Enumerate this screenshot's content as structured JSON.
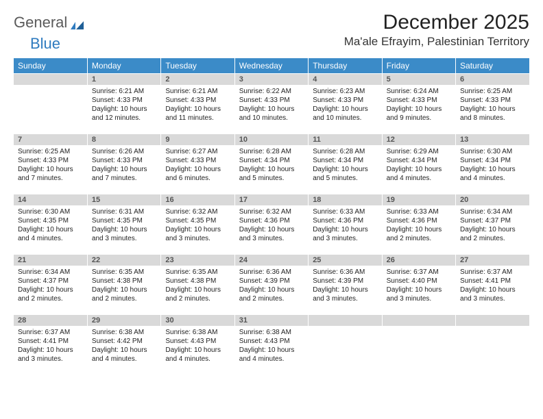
{
  "brand": {
    "word1": "General",
    "word2": "Blue"
  },
  "title": "December 2025",
  "location": "Ma'ale Efrayim, Palestinian Territory",
  "colors": {
    "header_bg": "#3b8bc8",
    "header_text": "#ffffff",
    "daynum_bg": "#d9d9d9",
    "daynum_text": "#555555",
    "body_text": "#222222",
    "brand_gray": "#5a5a5a",
    "brand_blue": "#2f7bbf"
  },
  "day_headers": [
    "Sunday",
    "Monday",
    "Tuesday",
    "Wednesday",
    "Thursday",
    "Friday",
    "Saturday"
  ],
  "weeks": [
    [
      null,
      {
        "n": "1",
        "sr": "Sunrise: 6:21 AM",
        "ss": "Sunset: 4:33 PM",
        "dl": "Daylight: 10 hours and 12 minutes."
      },
      {
        "n": "2",
        "sr": "Sunrise: 6:21 AM",
        "ss": "Sunset: 4:33 PM",
        "dl": "Daylight: 10 hours and 11 minutes."
      },
      {
        "n": "3",
        "sr": "Sunrise: 6:22 AM",
        "ss": "Sunset: 4:33 PM",
        "dl": "Daylight: 10 hours and 10 minutes."
      },
      {
        "n": "4",
        "sr": "Sunrise: 6:23 AM",
        "ss": "Sunset: 4:33 PM",
        "dl": "Daylight: 10 hours and 10 minutes."
      },
      {
        "n": "5",
        "sr": "Sunrise: 6:24 AM",
        "ss": "Sunset: 4:33 PM",
        "dl": "Daylight: 10 hours and 9 minutes."
      },
      {
        "n": "6",
        "sr": "Sunrise: 6:25 AM",
        "ss": "Sunset: 4:33 PM",
        "dl": "Daylight: 10 hours and 8 minutes."
      }
    ],
    [
      {
        "n": "7",
        "sr": "Sunrise: 6:25 AM",
        "ss": "Sunset: 4:33 PM",
        "dl": "Daylight: 10 hours and 7 minutes."
      },
      {
        "n": "8",
        "sr": "Sunrise: 6:26 AM",
        "ss": "Sunset: 4:33 PM",
        "dl": "Daylight: 10 hours and 7 minutes."
      },
      {
        "n": "9",
        "sr": "Sunrise: 6:27 AM",
        "ss": "Sunset: 4:33 PM",
        "dl": "Daylight: 10 hours and 6 minutes."
      },
      {
        "n": "10",
        "sr": "Sunrise: 6:28 AM",
        "ss": "Sunset: 4:34 PM",
        "dl": "Daylight: 10 hours and 5 minutes."
      },
      {
        "n": "11",
        "sr": "Sunrise: 6:28 AM",
        "ss": "Sunset: 4:34 PM",
        "dl": "Daylight: 10 hours and 5 minutes."
      },
      {
        "n": "12",
        "sr": "Sunrise: 6:29 AM",
        "ss": "Sunset: 4:34 PM",
        "dl": "Daylight: 10 hours and 4 minutes."
      },
      {
        "n": "13",
        "sr": "Sunrise: 6:30 AM",
        "ss": "Sunset: 4:34 PM",
        "dl": "Daylight: 10 hours and 4 minutes."
      }
    ],
    [
      {
        "n": "14",
        "sr": "Sunrise: 6:30 AM",
        "ss": "Sunset: 4:35 PM",
        "dl": "Daylight: 10 hours and 4 minutes."
      },
      {
        "n": "15",
        "sr": "Sunrise: 6:31 AM",
        "ss": "Sunset: 4:35 PM",
        "dl": "Daylight: 10 hours and 3 minutes."
      },
      {
        "n": "16",
        "sr": "Sunrise: 6:32 AM",
        "ss": "Sunset: 4:35 PM",
        "dl": "Daylight: 10 hours and 3 minutes."
      },
      {
        "n": "17",
        "sr": "Sunrise: 6:32 AM",
        "ss": "Sunset: 4:36 PM",
        "dl": "Daylight: 10 hours and 3 minutes."
      },
      {
        "n": "18",
        "sr": "Sunrise: 6:33 AM",
        "ss": "Sunset: 4:36 PM",
        "dl": "Daylight: 10 hours and 3 minutes."
      },
      {
        "n": "19",
        "sr": "Sunrise: 6:33 AM",
        "ss": "Sunset: 4:36 PM",
        "dl": "Daylight: 10 hours and 2 minutes."
      },
      {
        "n": "20",
        "sr": "Sunrise: 6:34 AM",
        "ss": "Sunset: 4:37 PM",
        "dl": "Daylight: 10 hours and 2 minutes."
      }
    ],
    [
      {
        "n": "21",
        "sr": "Sunrise: 6:34 AM",
        "ss": "Sunset: 4:37 PM",
        "dl": "Daylight: 10 hours and 2 minutes."
      },
      {
        "n": "22",
        "sr": "Sunrise: 6:35 AM",
        "ss": "Sunset: 4:38 PM",
        "dl": "Daylight: 10 hours and 2 minutes."
      },
      {
        "n": "23",
        "sr": "Sunrise: 6:35 AM",
        "ss": "Sunset: 4:38 PM",
        "dl": "Daylight: 10 hours and 2 minutes."
      },
      {
        "n": "24",
        "sr": "Sunrise: 6:36 AM",
        "ss": "Sunset: 4:39 PM",
        "dl": "Daylight: 10 hours and 2 minutes."
      },
      {
        "n": "25",
        "sr": "Sunrise: 6:36 AM",
        "ss": "Sunset: 4:39 PM",
        "dl": "Daylight: 10 hours and 3 minutes."
      },
      {
        "n": "26",
        "sr": "Sunrise: 6:37 AM",
        "ss": "Sunset: 4:40 PM",
        "dl": "Daylight: 10 hours and 3 minutes."
      },
      {
        "n": "27",
        "sr": "Sunrise: 6:37 AM",
        "ss": "Sunset: 4:41 PM",
        "dl": "Daylight: 10 hours and 3 minutes."
      }
    ],
    [
      {
        "n": "28",
        "sr": "Sunrise: 6:37 AM",
        "ss": "Sunset: 4:41 PM",
        "dl": "Daylight: 10 hours and 3 minutes."
      },
      {
        "n": "29",
        "sr": "Sunrise: 6:38 AM",
        "ss": "Sunset: 4:42 PM",
        "dl": "Daylight: 10 hours and 4 minutes."
      },
      {
        "n": "30",
        "sr": "Sunrise: 6:38 AM",
        "ss": "Sunset: 4:43 PM",
        "dl": "Daylight: 10 hours and 4 minutes."
      },
      {
        "n": "31",
        "sr": "Sunrise: 6:38 AM",
        "ss": "Sunset: 4:43 PM",
        "dl": "Daylight: 10 hours and 4 minutes."
      },
      null,
      null,
      null
    ]
  ]
}
